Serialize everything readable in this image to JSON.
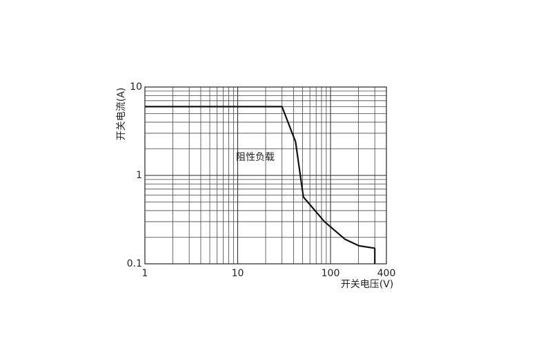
{
  "chart_data": {
    "type": "line",
    "x_label": "开关电压(V)",
    "y_label": "开关电流(A)",
    "annotation": "阻性负载",
    "x": [
      1,
      30,
      42,
      51,
      86,
      143,
      202,
      300,
      300
    ],
    "values": [
      6,
      6,
      2.4,
      0.57,
      0.3,
      0.19,
      0.16,
      0.15,
      0.1
    ],
    "color": "#111",
    "xscale": "log",
    "yscale": "log",
    "xlim": [
      1,
      400
    ],
    "ylim": [
      0.1,
      10
    ],
    "xticks": [
      1,
      10,
      100,
      400
    ],
    "yticks": [
      0.1,
      1,
      10
    ],
    "x_minor_grid": [
      2,
      3,
      4,
      5,
      6,
      7,
      8,
      9,
      20,
      30,
      40,
      50,
      60,
      70,
      80,
      90,
      200,
      300
    ],
    "y_minor_grid": [
      0.2,
      0.3,
      0.4,
      0.5,
      0.6,
      0.7,
      0.8,
      0.9,
      2,
      3,
      4,
      5,
      6,
      7,
      8,
      9
    ],
    "grid": true
  }
}
